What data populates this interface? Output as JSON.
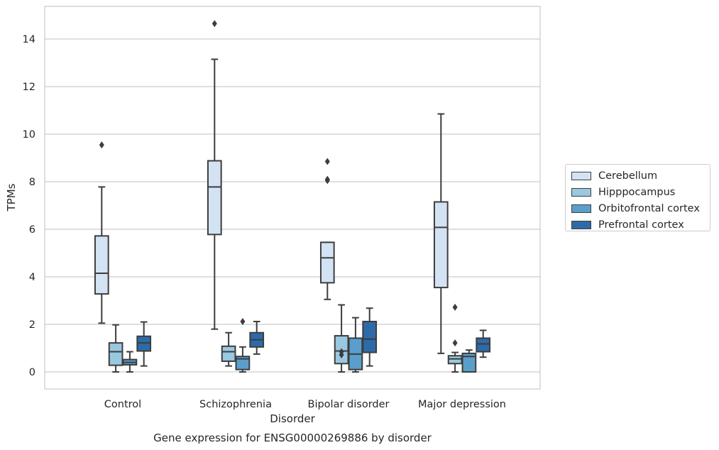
{
  "chart_data": {
    "type": "box",
    "title": "Gene expression for ENSG00000269886 by disorder",
    "xlabel": "Disorder",
    "ylabel": "TPMs",
    "categories": [
      "Control",
      "Schizophrenia",
      "Bipolar disorder",
      "Major depression"
    ],
    "ylim": [
      -0.7,
      15.4
    ],
    "yticks": [
      "0",
      "2",
      "4",
      "6",
      "8",
      "10",
      "12",
      "14"
    ],
    "grid": true,
    "legend_position": "right",
    "series": [
      {
        "name": "Cerebellum",
        "color": "#d3e3f3",
        "boxes": [
          {
            "whislo": 2.05,
            "q1": 3.28,
            "med": 4.15,
            "q3": 5.72,
            "whishi": 7.78,
            "fliers": [
              9.55
            ]
          },
          {
            "whislo": 1.8,
            "q1": 5.78,
            "med": 7.78,
            "q3": 8.88,
            "whishi": 13.15,
            "fliers": [
              14.65
            ]
          },
          {
            "whislo": 3.05,
            "q1": 3.75,
            "med": 4.8,
            "q3": 5.45,
            "whishi": 5.45,
            "fliers": [
              8.1,
              8.05,
              8.85
            ]
          },
          {
            "whislo": 0.78,
            "q1": 3.55,
            "med": 6.08,
            "q3": 7.15,
            "whishi": 10.85,
            "fliers": []
          }
        ]
      },
      {
        "name": "Hipppocampus",
        "color": "#9ac8e0",
        "boxes": [
          {
            "whislo": 0.0,
            "q1": 0.28,
            "med": 0.85,
            "q3": 1.22,
            "whishi": 1.98,
            "fliers": []
          },
          {
            "whislo": 0.25,
            "q1": 0.45,
            "med": 0.85,
            "q3": 1.08,
            "whishi": 1.65,
            "fliers": []
          },
          {
            "whislo": 0.0,
            "q1": 0.35,
            "med": 0.88,
            "q3": 1.52,
            "whishi": 2.82,
            "fliers": [
              0.85,
              0.72
            ]
          },
          {
            "whislo": 0.0,
            "q1": 0.35,
            "med": 0.55,
            "q3": 0.68,
            "whishi": 0.82,
            "fliers": [
              1.22,
              2.72
            ]
          }
        ]
      },
      {
        "name": "Orbitofrontal cortex",
        "color": "#5a9fcc",
        "boxes": [
          {
            "whislo": 0.0,
            "q1": 0.3,
            "med": 0.4,
            "q3": 0.52,
            "whishi": 0.85,
            "fliers": []
          },
          {
            "whislo": 0.0,
            "q1": 0.1,
            "med": 0.55,
            "q3": 0.65,
            "whishi": 1.05,
            "fliers": [
              2.12
            ]
          },
          {
            "whislo": 0.0,
            "q1": 0.1,
            "med": 0.75,
            "q3": 1.42,
            "whishi": 2.28,
            "fliers": []
          },
          {
            "whislo": 0.0,
            "q1": 0.0,
            "med": 0.65,
            "q3": 0.78,
            "whishi": 0.92,
            "fliers": []
          }
        ]
      },
      {
        "name": "Prefrontal cortex",
        "color": "#2d6ba8",
        "boxes": [
          {
            "whislo": 0.25,
            "q1": 0.88,
            "med": 1.22,
            "q3": 1.5,
            "whishi": 2.1,
            "fliers": []
          },
          {
            "whislo": 0.75,
            "q1": 1.05,
            "med": 1.35,
            "q3": 1.65,
            "whishi": 2.12,
            "fliers": []
          },
          {
            "whislo": 0.25,
            "q1": 0.82,
            "med": 1.38,
            "q3": 2.12,
            "whishi": 2.68,
            "fliers": []
          },
          {
            "whislo": 0.62,
            "q1": 0.85,
            "med": 1.18,
            "q3": 1.42,
            "whishi": 1.75,
            "fliers": []
          }
        ]
      }
    ]
  }
}
